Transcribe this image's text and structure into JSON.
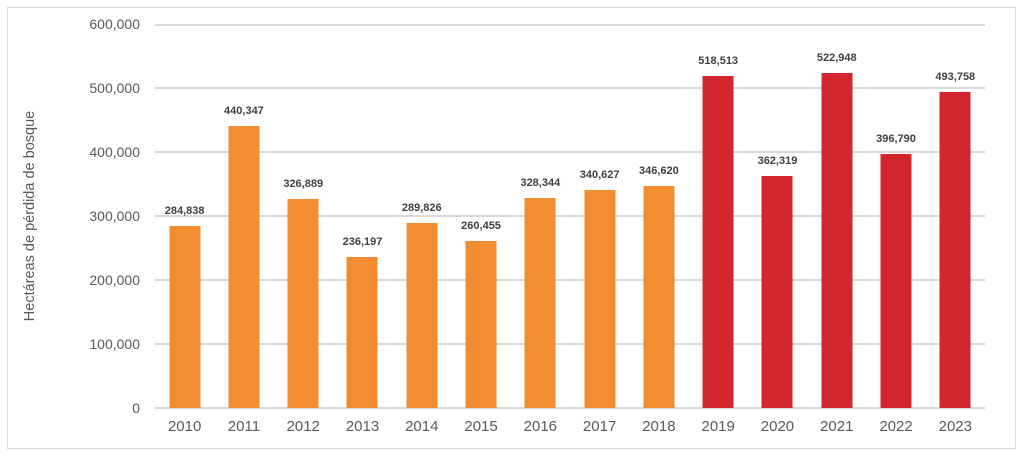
{
  "chart_data": {
    "type": "bar",
    "title": "",
    "xlabel": "",
    "ylabel": "Hectáreas de pérdida de bosque",
    "categories": [
      "2010",
      "2011",
      "2012",
      "2013",
      "2014",
      "2015",
      "2016",
      "2017",
      "2018",
      "2019",
      "2020",
      "2021",
      "2022",
      "2023"
    ],
    "values": [
      284838,
      440347,
      326889,
      236197,
      289826,
      260455,
      328344,
      340627,
      346620,
      518513,
      362319,
      522948,
      396790,
      493758
    ],
    "data_labels": [
      "284,838",
      "440,347",
      "326,889",
      "236,197",
      "289,826",
      "260,455",
      "328,344",
      "340,627",
      "346,620",
      "518,513",
      "362,319",
      "522,948",
      "396,790",
      "493,758"
    ],
    "ylim": [
      0,
      600000
    ],
    "y_tick_values": [
      0,
      100000,
      200000,
      300000,
      400000,
      500000,
      600000
    ],
    "y_tick_labels": [
      "0",
      "100,000",
      "200,000",
      "300,000",
      "400,000",
      "500,000",
      "600,000"
    ],
    "grid": true,
    "legend": false,
    "bar_colors": [
      "#F28C31",
      "#F28C31",
      "#F28C31",
      "#F28C31",
      "#F28C31",
      "#F28C31",
      "#F28C31",
      "#F28C31",
      "#F28C31",
      "#D2262F",
      "#D2262F",
      "#D2262F",
      "#D2262F",
      "#D2262F"
    ],
    "colors": {
      "orange_series": "#F28C31",
      "red_series": "#D2262F",
      "gridline": "#D9D9D9",
      "axis_text": "#595959",
      "data_label_text": "#404040",
      "border": "#D9D9D9",
      "background": "#FFFFFF"
    }
  }
}
